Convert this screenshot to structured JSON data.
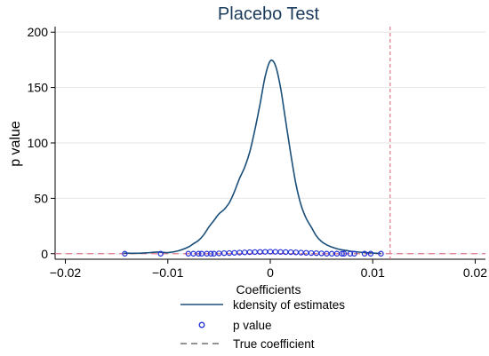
{
  "chart_data": {
    "type": "line",
    "title": "Placebo Test",
    "xlabel": "Coefficients",
    "ylabel": "p value",
    "xlim": [
      -0.021,
      0.021
    ],
    "ylim": [
      -5,
      205
    ],
    "x_ticks": [
      -0.02,
      -0.01,
      0,
      0.01,
      0.02
    ],
    "x_tick_labels": [
      "−0.02",
      "−0.01",
      "0",
      "0.01",
      "0.02"
    ],
    "y_ticks": [
      0,
      50,
      100,
      150,
      200
    ],
    "y_tick_labels": [
      "0",
      "50",
      "100",
      "150",
      "200"
    ],
    "grid": "horizontal",
    "legend_position": "bottom",
    "true_coefficient": 0.0117,
    "series": [
      {
        "name": "kdensity of estimates",
        "kind": "line",
        "color": "#1a4f7a",
        "x": [
          -0.0143,
          -0.013,
          -0.012,
          -0.011,
          -0.01,
          -0.009,
          -0.008,
          -0.0075,
          -0.007,
          -0.0065,
          -0.006,
          -0.0055,
          -0.005,
          -0.0045,
          -0.004,
          -0.0035,
          -0.003,
          -0.0025,
          -0.002,
          -0.0015,
          -0.001,
          -0.0005,
          0,
          0.0005,
          0.001,
          0.0015,
          0.002,
          0.0025,
          0.003,
          0.0035,
          0.004,
          0.0045,
          0.005,
          0.0055,
          0.006,
          0.0065,
          0.007,
          0.0075,
          0.008,
          0.009,
          0.01,
          0.0108
        ],
        "y": [
          0.5,
          0.4,
          0.8,
          1.5,
          1.0,
          2.5,
          6,
          9,
          12,
          17,
          24,
          30,
          36,
          40,
          46,
          56,
          68,
          78,
          92,
          112,
          135,
          160,
          174,
          170,
          150,
          120,
          90,
          63,
          44,
          32,
          24,
          16,
          11,
          8,
          6,
          4.5,
          3.5,
          2.8,
          2.0,
          1.2,
          0.6,
          0.2
        ]
      },
      {
        "name": "p value",
        "kind": "scatter",
        "color": "#1f2fd6",
        "x": [
          -0.0142,
          -0.0107,
          -0.008,
          -0.0075,
          -0.007,
          -0.0067,
          -0.0062,
          -0.0058,
          -0.0055,
          -0.005,
          -0.0045,
          -0.004,
          -0.0035,
          -0.003,
          -0.0025,
          -0.002,
          -0.0015,
          -0.001,
          -0.0005,
          0,
          0.0005,
          0.001,
          0.0015,
          0.002,
          0.0025,
          0.003,
          0.0035,
          0.004,
          0.0045,
          0.005,
          0.0055,
          0.006,
          0.0065,
          0.007,
          0.0072,
          0.0078,
          0.0082,
          0.0092,
          0.0098,
          0.0108
        ],
        "y": [
          0,
          0,
          0,
          0,
          0,
          0,
          0,
          0,
          0,
          0.3,
          0.5,
          0.6,
          0.8,
          1.0,
          1.2,
          1.4,
          1.5,
          1.6,
          1.7,
          1.8,
          1.7,
          1.6,
          1.5,
          1.4,
          1.2,
          1.0,
          0.8,
          0.6,
          0.5,
          0.3,
          0,
          0,
          0,
          0,
          0,
          0,
          0,
          0,
          0,
          0
        ]
      },
      {
        "name": "True coefficient",
        "kind": "reference-line",
        "color": "#e0788a"
      }
    ]
  }
}
